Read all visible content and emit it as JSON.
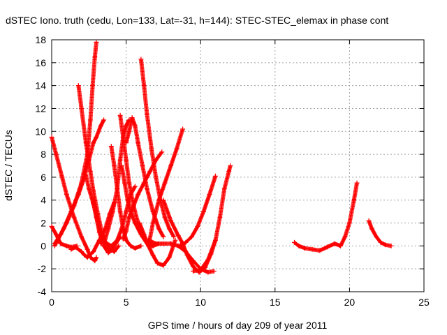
{
  "chart_data": {
    "type": "scatter",
    "title": "dSTEC Iono. truth (cedu, Lon=133, Lat=-31, h=144): STEC-STEC_elemax in phase cont",
    "xlabel": "GPS time / hours of day 209 of year 2011",
    "ylabel": "dSTEC  / TECUs",
    "xlim": [
      0,
      25
    ],
    "ylim": [
      -4,
      18
    ],
    "xticks": [
      0,
      5,
      10,
      15,
      20,
      25
    ],
    "yticks": [
      -4,
      -2,
      0,
      2,
      4,
      6,
      8,
      10,
      12,
      14,
      16,
      18
    ],
    "grid": true,
    "marker": "+",
    "color": "#ff0000",
    "series": [
      {
        "x": [
          0.0,
          0.3,
          0.7,
          1.0,
          1.5,
          2.0,
          2.4,
          2.6,
          2.9,
          3.0
        ],
        "y": [
          9.5,
          8.0,
          6.0,
          4.5,
          2.5,
          0.8,
          -0.3,
          -1.0,
          -1.3,
          -1.0
        ]
      },
      {
        "x": [
          0.0,
          0.3,
          0.6,
          1.0,
          1.3,
          1.7
        ],
        "y": [
          1.7,
          1.0,
          0.2,
          0.0,
          -0.1,
          0.0
        ]
      },
      {
        "x": [
          0.2,
          0.6,
          1.0,
          1.5,
          2.0,
          2.4,
          2.6,
          2.75,
          2.9,
          3.0
        ],
        "y": [
          0.2,
          1.0,
          2.0,
          3.5,
          5.5,
          8.0,
          11.0,
          14.0,
          16.5,
          17.8
        ]
      },
      {
        "x": [
          0.2,
          0.8,
          1.3,
          1.8,
          2.2,
          2.5,
          2.8,
          3.0,
          3.3,
          3.5
        ],
        "y": [
          0.0,
          1.5,
          3.0,
          4.5,
          6.0,
          7.5,
          9.0,
          9.5,
          10.5,
          11.0
        ]
      },
      {
        "x": [
          1.3,
          1.6,
          2.0,
          2.2,
          2.4,
          2.8,
          3.2,
          3.6,
          3.9,
          4.2
        ],
        "y": [
          -0.3,
          -0.1,
          -0.5,
          -0.8,
          -1.0,
          -0.5,
          0.5,
          1.5,
          2.8,
          3.8
        ]
      },
      {
        "x": [
          1.8,
          2.0,
          2.3,
          2.6,
          2.8,
          3.1,
          3.4,
          3.8,
          4.2,
          4.5
        ],
        "y": [
          14.0,
          12.0,
          9.0,
          6.5,
          4.8,
          2.8,
          1.0,
          -0.2,
          -0.5,
          0.0
        ]
      },
      {
        "x": [
          2.3,
          2.5,
          2.8,
          3.0,
          3.2,
          3.5,
          3.8,
          4.0,
          4.3,
          4.6
        ],
        "y": [
          6.2,
          5.0,
          3.7,
          2.5,
          1.2,
          0.0,
          -0.6,
          -0.4,
          0.2,
          0.8
        ]
      },
      {
        "x": [
          2.8,
          3.0,
          3.3,
          3.6,
          4.0,
          4.4,
          4.7,
          5.0,
          5.3,
          5.6
        ],
        "y": [
          3.8,
          2.5,
          1.0,
          0.3,
          0.0,
          0.5,
          1.5,
          3.0,
          4.5,
          5.2
        ]
      },
      {
        "x": [
          3.3,
          3.6,
          3.8,
          4.1,
          4.4,
          4.6,
          4.8,
          5.0,
          5.2
        ],
        "y": [
          0.2,
          0.6,
          1.5,
          3.0,
          5.0,
          7.5,
          9.5,
          10.5,
          11.0
        ]
      },
      {
        "x": [
          4.0,
          4.2,
          4.4,
          4.6,
          4.8,
          5.0,
          5.3,
          5.6,
          6.0
        ],
        "y": [
          8.7,
          7.0,
          5.0,
          3.0,
          1.5,
          0.5,
          0.0,
          -0.2,
          0.0
        ]
      },
      {
        "x": [
          4.6,
          4.8,
          5.0,
          5.2,
          5.5,
          5.8,
          6.1,
          6.5,
          6.8
        ],
        "y": [
          11.4,
          9.5,
          7.5,
          5.5,
          3.5,
          2.0,
          0.8,
          0.0,
          0.0
        ]
      },
      {
        "x": [
          4.7,
          4.9,
          5.1,
          5.3,
          5.6,
          6.0,
          6.4,
          6.8,
          7.2
        ],
        "y": [
          7.0,
          5.5,
          4.0,
          3.0,
          2.0,
          1.0,
          0.3,
          0.0,
          0.2
        ]
      },
      {
        "x": [
          4.8,
          5.0,
          5.2,
          5.5,
          5.8,
          6.2,
          6.6,
          7.0,
          7.4
        ],
        "y": [
          0.6,
          1.3,
          2.5,
          3.5,
          4.5,
          5.5,
          6.5,
          7.5,
          8.2
        ]
      },
      {
        "x": [
          5.0,
          5.2,
          5.4,
          5.6,
          5.8,
          6.1,
          6.4,
          6.8,
          7.2,
          7.5
        ],
        "y": [
          9.0,
          10.0,
          11.2,
          10.5,
          9.0,
          7.0,
          5.0,
          3.0,
          1.5,
          0.8
        ]
      },
      {
        "x": [
          6.0,
          6.2,
          6.4,
          6.7,
          7.0,
          7.3,
          7.6,
          7.9,
          8.2
        ],
        "y": [
          16.3,
          14.0,
          11.5,
          8.5,
          6.0,
          4.0,
          2.5,
          1.5,
          0.8
        ]
      },
      {
        "x": [
          5.9,
          6.2,
          6.5,
          6.8,
          7.1,
          7.5,
          7.9,
          8.3
        ],
        "y": [
          2.0,
          1.0,
          0.0,
          -0.8,
          -1.5,
          -1.7,
          -1.0,
          0.5
        ]
      },
      {
        "x": [
          6.5,
          6.8,
          7.2,
          7.6,
          8.0,
          8.4,
          8.8
        ],
        "y": [
          0.0,
          2.0,
          4.0,
          5.5,
          7.0,
          8.5,
          10.2
        ]
      },
      {
        "x": [
          6.5,
          7.0,
          7.5,
          8.0,
          8.5,
          9.0,
          9.5,
          10.0,
          10.5,
          10.9
        ],
        "y": [
          0.5,
          0.2,
          0.2,
          0.2,
          0.0,
          -0.5,
          -1.3,
          -2.0,
          -2.3,
          -2.2
        ]
      },
      {
        "x": [
          7.5,
          8.0,
          8.5,
          8.8,
          9.1,
          9.5,
          9.9,
          10.3,
          10.7,
          11.0
        ],
        "y": [
          4.0,
          2.2,
          0.9,
          0.2,
          -0.8,
          -1.8,
          -2.3,
          -1.9,
          -0.7,
          0.5
        ]
      },
      {
        "x": [
          8.6,
          9.0,
          9.4,
          9.8,
          10.2,
          10.6,
          11.0
        ],
        "y": [
          0.0,
          0.3,
          0.8,
          1.7,
          3.0,
          4.5,
          6.1
        ]
      },
      {
        "x": [
          9.5,
          10.0,
          10.5,
          11.0,
          11.3,
          11.6,
          11.9,
          12.0
        ],
        "y": [
          -2.2,
          -2.1,
          -1.2,
          0.5,
          2.5,
          5.0,
          6.5,
          7.0
        ]
      },
      {
        "x": [
          16.3,
          16.6,
          17.0,
          17.5,
          18.0,
          18.5,
          19.0,
          19.4,
          19.7,
          20.0,
          20.3,
          20.5
        ],
        "y": [
          0.3,
          0.0,
          -0.2,
          -0.3,
          -0.4,
          -0.1,
          0.2,
          0.0,
          0.8,
          2.0,
          4.0,
          5.5
        ]
      },
      {
        "x": [
          21.3,
          21.5,
          21.8,
          22.1,
          22.4,
          22.8
        ],
        "y": [
          2.2,
          1.5,
          0.8,
          0.3,
          0.1,
          0.0
        ]
      }
    ]
  }
}
